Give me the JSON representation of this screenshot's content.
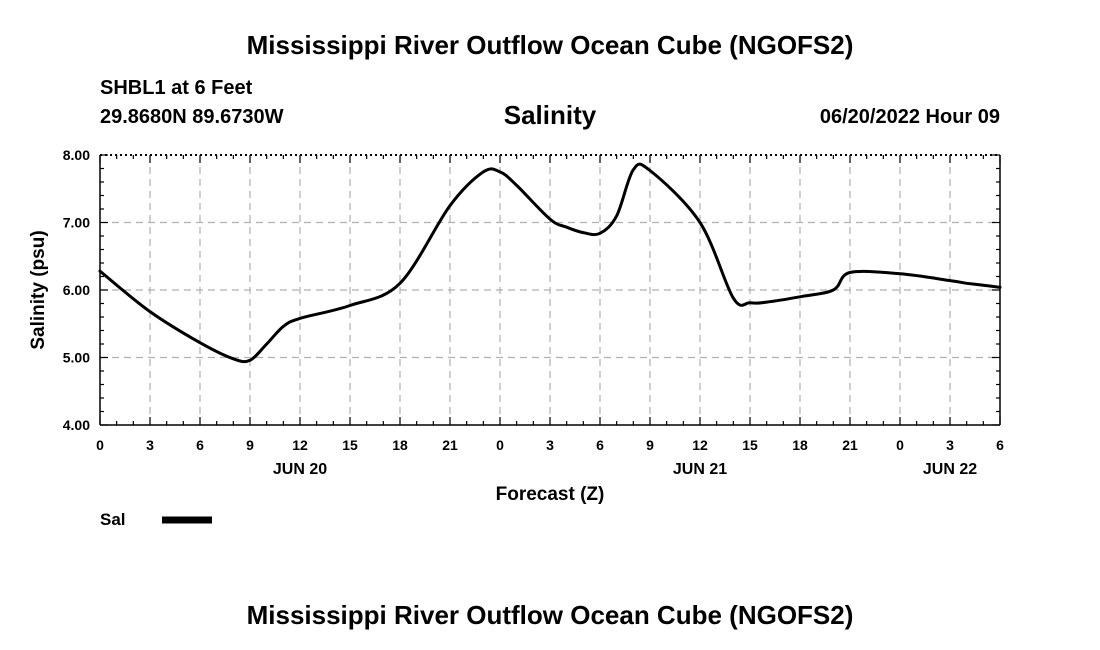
{
  "header": {
    "title": "Mississippi River Outflow Ocean Cube (NGOFS2)",
    "station": "SHBL1 at 6 Feet",
    "coords": "29.8680N  89.6730W",
    "panel_title": "Salinity",
    "datetime": "06/20/2022 Hour 09"
  },
  "footer": {
    "title": "Mississippi River Outflow Ocean Cube (NGOFS2)"
  },
  "chart_data": {
    "type": "line",
    "title": "Salinity",
    "xlabel": "Forecast (Z)",
    "ylabel": "Salinity (psu)",
    "ylim": [
      4.0,
      8.0
    ],
    "yticks": [
      "4.00",
      "5.00",
      "6.00",
      "7.00",
      "8.00"
    ],
    "xlim": [
      0,
      54
    ],
    "xtick_labels": [
      "0",
      "3",
      "6",
      "9",
      "12",
      "15",
      "18",
      "21",
      "0",
      "3",
      "6",
      "9",
      "12",
      "15",
      "18",
      "21",
      "0",
      "3",
      "6"
    ],
    "date_labels": [
      {
        "label": "JUN 20",
        "x": 12
      },
      {
        "label": "JUN 21",
        "x": 36
      },
      {
        "label": "JUN 22",
        "x": 51
      }
    ],
    "grid": true,
    "legend_position": "bottom-left",
    "series": [
      {
        "name": "Sal",
        "color": "#000000",
        "x": [
          0,
          3,
          6,
          8,
          9,
          10,
          11,
          12,
          15,
          18,
          21,
          23,
          24,
          25,
          27,
          28,
          29,
          30,
          31,
          32,
          33,
          36,
          38,
          39,
          40,
          42,
          44,
          45,
          48,
          51,
          52,
          53,
          54
        ],
        "y": [
          6.28,
          5.68,
          5.22,
          4.98,
          4.96,
          5.2,
          5.46,
          5.58,
          5.77,
          6.1,
          7.25,
          7.75,
          7.75,
          7.55,
          7.05,
          6.93,
          6.85,
          6.84,
          7.1,
          7.78,
          7.77,
          7.0,
          5.88,
          5.81,
          5.82,
          5.9,
          6.0,
          6.26,
          6.24,
          6.14,
          6.1,
          6.07,
          6.04
        ]
      }
    ]
  }
}
